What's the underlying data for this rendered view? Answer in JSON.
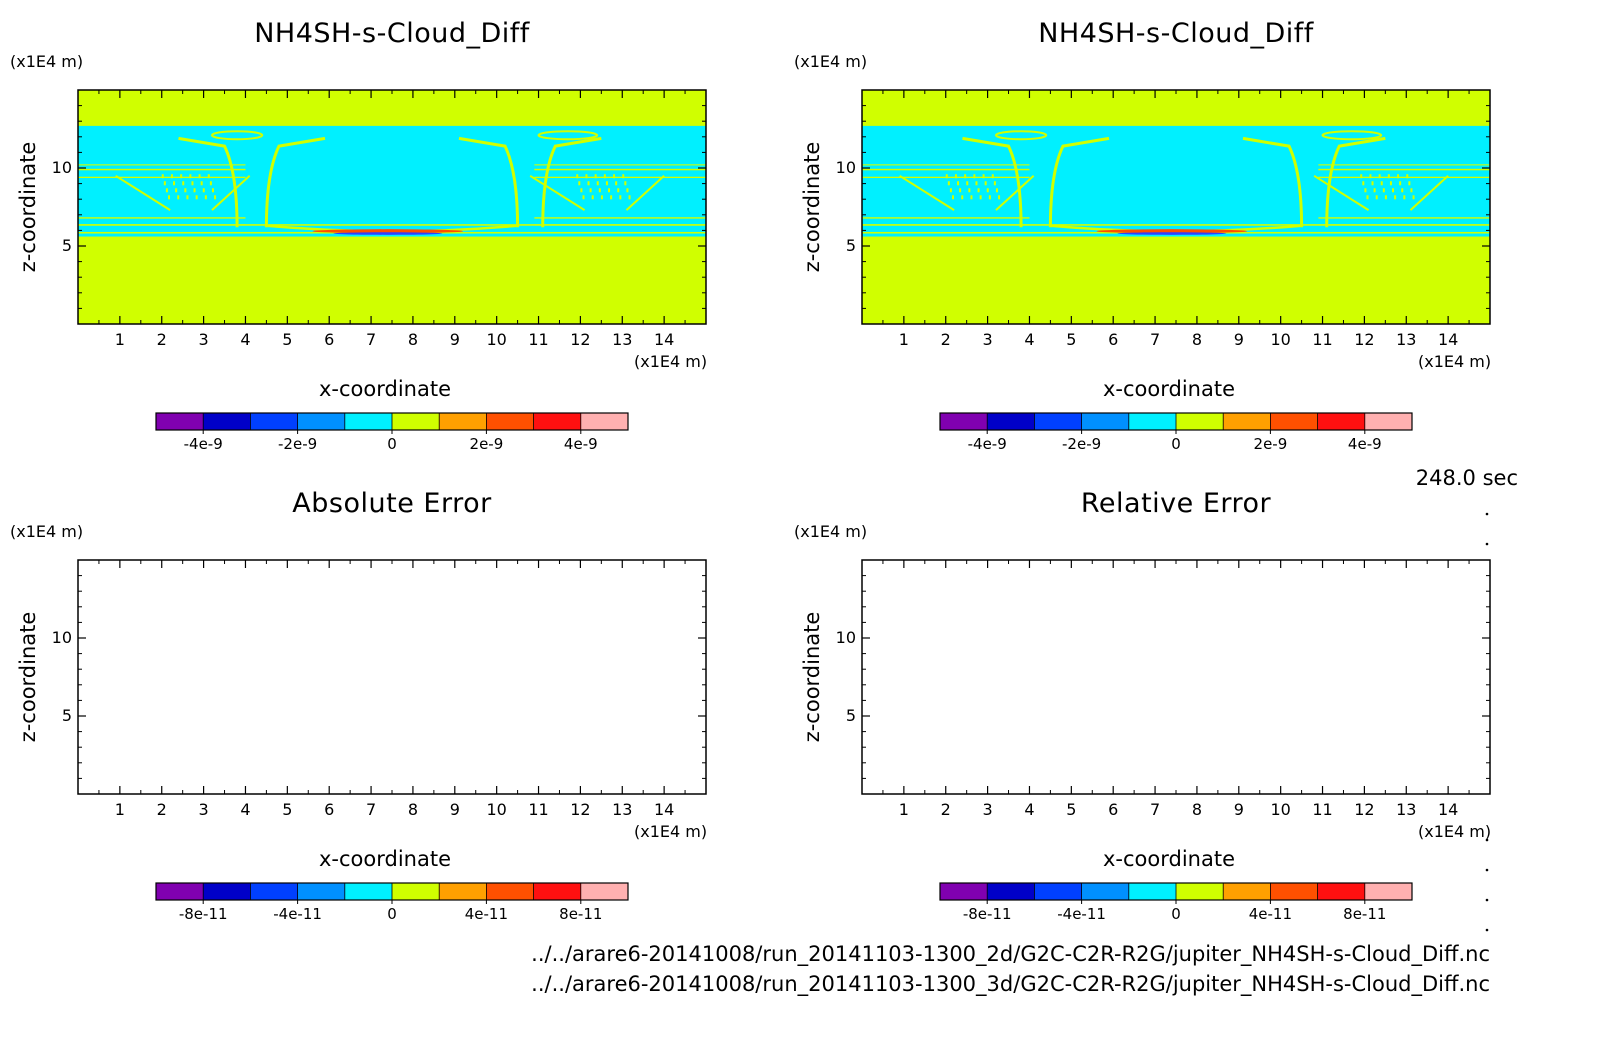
{
  "panels": [
    {
      "title": "NH4SH-s-Cloud_Diff",
      "x_unit": "(x1E4 m)",
      "z_unit": "(x1E4 m)",
      "xlabel": "x-coordinate",
      "ylabel": "z-coordinate",
      "x_ticks": [
        "1",
        "2",
        "3",
        "4",
        "5",
        "6",
        "7",
        "8",
        "9",
        "10",
        "11",
        "12",
        "13",
        "14"
      ],
      "y_ticks": [
        "5",
        "10"
      ],
      "colorbar_ticks": [
        "-4e-9",
        "-2e-9",
        "0",
        "2e-9",
        "4e-9"
      ],
      "filled": true
    },
    {
      "title": "NH4SH-s-Cloud_Diff",
      "x_unit": "(x1E4 m)",
      "z_unit": "(x1E4 m)",
      "xlabel": "x-coordinate",
      "ylabel": "z-coordinate",
      "x_ticks": [
        "1",
        "2",
        "3",
        "4",
        "5",
        "6",
        "7",
        "8",
        "9",
        "10",
        "11",
        "12",
        "13",
        "14"
      ],
      "y_ticks": [
        "5",
        "10"
      ],
      "colorbar_ticks": [
        "-4e-9",
        "-2e-9",
        "0",
        "2e-9",
        "4e-9"
      ],
      "filled": true
    },
    {
      "title": "Absolute Error",
      "x_unit": "(x1E4 m)",
      "z_unit": "(x1E4 m)",
      "xlabel": "x-coordinate",
      "ylabel": "z-coordinate",
      "x_ticks": [
        "1",
        "2",
        "3",
        "4",
        "5",
        "6",
        "7",
        "8",
        "9",
        "10",
        "11",
        "12",
        "13",
        "14"
      ],
      "y_ticks": [
        "5",
        "10"
      ],
      "colorbar_ticks": [
        "-8e-11",
        "-4e-11",
        "0",
        "4e-11",
        "8e-11"
      ],
      "filled": false
    },
    {
      "title": "Relative Error",
      "x_unit": "(x1E4 m)",
      "z_unit": "(x1E4 m)",
      "xlabel": "x-coordinate",
      "ylabel": "z-coordinate",
      "x_ticks": [
        "1",
        "2",
        "3",
        "4",
        "5",
        "6",
        "7",
        "8",
        "9",
        "10",
        "11",
        "12",
        "13",
        "14"
      ],
      "y_ticks": [
        "5",
        "10"
      ],
      "colorbar_ticks": [
        "-8e-11",
        "-4e-11",
        "0",
        "4e-11",
        "8e-11"
      ],
      "filled": false
    }
  ],
  "time_label": "248.0 sec",
  "files": [
    "../../arare6-20141008/run_20141103-1300_2d/G2C-C2R-R2G/jupiter_NH4SH-s-Cloud_Diff.nc",
    "../../arare6-20141008/run_20141103-1300_3d/G2C-C2R-R2G/jupiter_NH4SH-s-Cloud_Diff.nc"
  ],
  "chart_data": [
    {
      "type": "heatmap",
      "title": "NH4SH-s-Cloud_Diff",
      "xlabel": "x-coordinate",
      "ylabel": "z-coordinate",
      "xlim": [
        0,
        15
      ],
      "ylim": [
        0,
        15
      ],
      "x_unit": "(x1E4 m)",
      "z_unit": "(x1E4 m)",
      "colorbar": {
        "levels": [
          -5e-09,
          -4e-09,
          -3e-09,
          -2e-09,
          -1e-09,
          0,
          1e-09,
          2e-09,
          3e-09,
          4e-09,
          5e-09
        ],
        "colors": [
          "#8000b0",
          "#0000c8",
          "#0040ff",
          "#0090ff",
          "#00f0ff",
          "#d0ff00",
          "#ffa000",
          "#ff5000",
          "#ff1010",
          "#ffb0b0"
        ],
        "tick_labels": [
          "-4e-9",
          "-2e-9",
          "0",
          "2e-9",
          "4e-9"
        ]
      }
    },
    {
      "type": "heatmap",
      "title": "NH4SH-s-Cloud_Diff",
      "xlabel": "x-coordinate",
      "ylabel": "z-coordinate",
      "xlim": [
        0,
        15
      ],
      "ylim": [
        0,
        15
      ],
      "x_unit": "(x1E4 m)",
      "z_unit": "(x1E4 m)",
      "colorbar": {
        "levels": [
          -5e-09,
          -4e-09,
          -3e-09,
          -2e-09,
          -1e-09,
          0,
          1e-09,
          2e-09,
          3e-09,
          4e-09,
          5e-09
        ],
        "colors": [
          "#8000b0",
          "#0000c8",
          "#0040ff",
          "#0090ff",
          "#00f0ff",
          "#d0ff00",
          "#ffa000",
          "#ff5000",
          "#ff1010",
          "#ffb0b0"
        ],
        "tick_labels": [
          "-4e-9",
          "-2e-9",
          "0",
          "2e-9",
          "4e-9"
        ]
      }
    },
    {
      "type": "heatmap",
      "title": "Absolute Error",
      "xlabel": "x-coordinate",
      "ylabel": "z-coordinate",
      "xlim": [
        0,
        15
      ],
      "ylim": [
        0,
        15
      ],
      "x_unit": "(x1E4 m)",
      "z_unit": "(x1E4 m)",
      "colorbar": {
        "levels": [
          -1e-10,
          -8e-11,
          -6e-11,
          -4e-11,
          -2e-11,
          0,
          2e-11,
          4e-11,
          6e-11,
          8e-11,
          1e-10
        ],
        "colors": [
          "#8000b0",
          "#0000c8",
          "#0040ff",
          "#0090ff",
          "#00f0ff",
          "#d0ff00",
          "#ffa000",
          "#ff5000",
          "#ff1010",
          "#ffb0b0"
        ],
        "tick_labels": [
          "-8e-11",
          "-4e-11",
          "0",
          "4e-11",
          "8e-11"
        ]
      }
    },
    {
      "type": "heatmap",
      "title": "Relative Error",
      "xlabel": "x-coordinate",
      "ylabel": "z-coordinate",
      "xlim": [
        0,
        15
      ],
      "ylim": [
        0,
        15
      ],
      "x_unit": "(x1E4 m)",
      "z_unit": "(x1E4 m)",
      "colorbar": {
        "levels": [
          -1e-10,
          -8e-11,
          -6e-11,
          -4e-11,
          -2e-11,
          0,
          2e-11,
          4e-11,
          6e-11,
          8e-11,
          1e-10
        ],
        "colors": [
          "#8000b0",
          "#0000c8",
          "#0040ff",
          "#0090ff",
          "#00f0ff",
          "#d0ff00",
          "#ffa000",
          "#ff5000",
          "#ff1010",
          "#ffb0b0"
        ],
        "tick_labels": [
          "-8e-11",
          "-4e-11",
          "0",
          "4e-11",
          "8e-11"
        ]
      }
    }
  ]
}
